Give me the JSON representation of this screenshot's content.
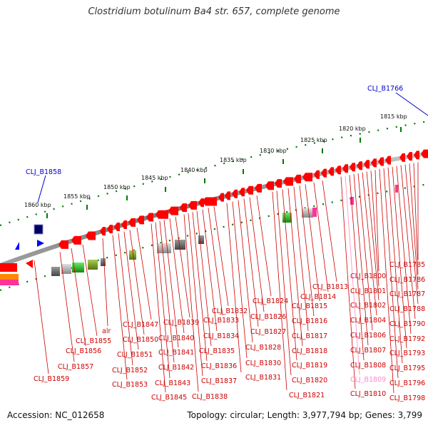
{
  "title": "Clostridium botulinum Ba4 str. 657, complete genome",
  "footer": {
    "accession": "Accession: NC_012658",
    "topology": "Topology: circular; Length: 3,977,794 bp; Genes: 3,799"
  },
  "colors": {
    "gene_red": "#ff0000",
    "label_red": "#cc0000",
    "highlight_blue": "#0000cc",
    "label_pink": "#ff88cc",
    "backbone": "#808080",
    "tick_green": "#007700"
  },
  "scale": {
    "unit": "kbp",
    "ticks": [
      "1815 kbp",
      "1820 kbp",
      "1825 kbp",
      "1830 kbp",
      "1835 kbp",
      "1840 kbp",
      "1845 kbp",
      "1850 kbp",
      "1855 kbp",
      "1860 kbp"
    ]
  },
  "highlighted_genes": [
    "CLJ_B1766",
    "CLJ_B1858"
  ],
  "gene_labels": [
    "CLJ_B1785",
    "CLJ_B1786",
    "CLJ_B1787",
    "CLJ_B1788",
    "CLJ_B1790",
    "CLJ_B1792",
    "CLJ_B1793",
    "CLJ_B1795",
    "CLJ_B1796",
    "CLJ_B1798",
    "CLJ_B1800",
    "CLJ_B1801",
    "CLJ_B1802",
    "CLJ_B1804",
    "CLJ_B1806",
    "CLJ_B1807",
    "CLJ_B1808",
    "CLJ_B1809",
    "CLJ_B1810",
    "CLJ_B1813",
    "CLJ_B1814",
    "CLJ_B1815",
    "CLJ_B1816",
    "CLJ_B1817",
    "CLJ_B1818",
    "CLJ_B1819",
    "CLJ_B1820",
    "CLJ_B1821",
    "CLJ_B1824",
    "CLJ_B1826",
    "CLJ_B1827",
    "CLJ_B1828",
    "CLJ_B1830",
    "CLJ_B1831",
    "CLJ_B1832",
    "CLJ_B1833",
    "CLJ_B1834",
    "CLJ_B1835",
    "CLJ_B1836",
    "CLJ_B1837",
    "CLJ_B1838",
    "CLJ_B1839",
    "CLJ_B1840",
    "CLJ_B1841",
    "CLJ_B1842",
    "CLJ_B1843",
    "CLJ_B1845",
    "CLJ_B1847",
    "CLJ_B1850",
    "CLJ_B1851",
    "CLJ_B1852",
    "CLJ_B1853",
    "alr",
    "CLJ_B1855",
    "CLJ_B1856",
    "CLJ_B1857",
    "CLJ_B1859"
  ]
}
